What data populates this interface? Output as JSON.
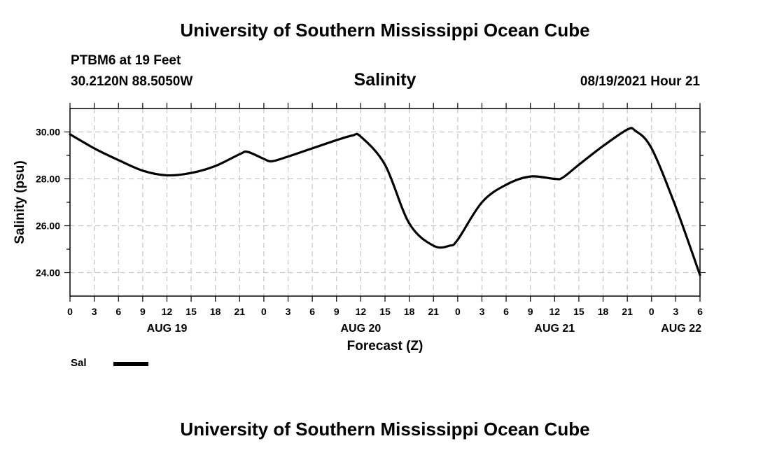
{
  "header": {
    "title": "University of Southern Mississippi Ocean Cube",
    "station": "PTBM6 at 19 Feet",
    "coordinates": "30.2120N  88.5050W",
    "timestamp": "08/19/2021 Hour 21"
  },
  "footer": {
    "title": "University of Southern Mississippi Ocean Cube"
  },
  "legend": {
    "label": "Sal"
  },
  "chart_data": {
    "type": "line",
    "title": "Salinity",
    "xlabel": "Forecast (Z)",
    "ylabel": "Salinity (psu)",
    "xlim": [
      0,
      78
    ],
    "ylim": [
      23,
      31
    ],
    "grid": true,
    "legend_position": "bottom-left",
    "x_tick_values": [
      0,
      3,
      6,
      9,
      12,
      15,
      18,
      21,
      24,
      27,
      30,
      33,
      36,
      39,
      42,
      45,
      48,
      51,
      54,
      57,
      60,
      63,
      66,
      69,
      72,
      75,
      78
    ],
    "x_tick_labels": [
      "0",
      "3",
      "6",
      "9",
      "12",
      "15",
      "18",
      "21",
      "0",
      "3",
      "6",
      "9",
      "12",
      "15",
      "18",
      "21",
      "0",
      "3",
      "6",
      "9",
      "12",
      "15",
      "18",
      "21",
      "0",
      "3",
      "6"
    ],
    "day_labels": [
      {
        "hour": 12,
        "label": "AUG 19"
      },
      {
        "hour": 36,
        "label": "AUG 20"
      },
      {
        "hour": 60,
        "label": "AUG 21"
      },
      {
        "hour": 78,
        "label": "AUG 22"
      }
    ],
    "y_tick_values": [
      24,
      26,
      28,
      30
    ],
    "y_tick_labels": [
      "24.00",
      "26.00",
      "28.00",
      "30.00"
    ],
    "series": [
      {
        "name": "Sal",
        "x": [
          0,
          3,
          6,
          9,
          12,
          15,
          18,
          21,
          22,
          24,
          25,
          27,
          30,
          33,
          35,
          36,
          39,
          42,
          45,
          47,
          48,
          51,
          54,
          57,
          60,
          61,
          63,
          66,
          69,
          70,
          72,
          75,
          78
        ],
        "values": [
          29.9,
          29.3,
          28.8,
          28.35,
          28.15,
          28.25,
          28.55,
          29.05,
          29.15,
          28.85,
          28.75,
          28.95,
          29.3,
          29.65,
          29.85,
          29.8,
          28.6,
          26.1,
          25.15,
          25.15,
          25.4,
          27.0,
          27.75,
          28.1,
          28.0,
          28.05,
          28.6,
          29.4,
          30.1,
          30.05,
          29.3,
          26.8,
          23.9
        ]
      }
    ]
  }
}
